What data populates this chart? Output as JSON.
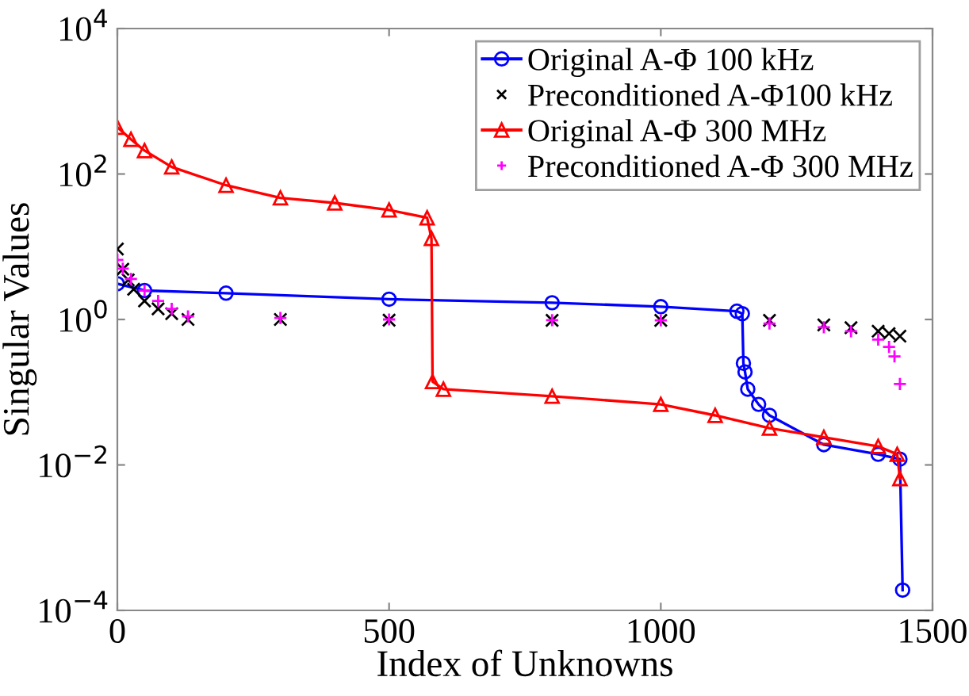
{
  "chart_data": {
    "type": "line",
    "xlabel": "Index of Unknowns",
    "ylabel": "Singular Values",
    "log": "y",
    "xlim": [
      0,
      1500
    ],
    "xticks": [
      0,
      500,
      1000,
      1500
    ],
    "ylim": [
      0.0001,
      10000
    ],
    "yticks": [
      {
        "value": 0.0001,
        "label": "10$^{−4}$"
      },
      {
        "value": 0.01,
        "label": "10$^{−2}$"
      },
      {
        "value": 1,
        "label": "10$^{0}$"
      },
      {
        "value": 100,
        "label": "10$^{2}$"
      },
      {
        "value": 10000,
        "label": "10$^{4}$"
      }
    ],
    "grid": false,
    "legend": "top right",
    "series": [
      {
        "name": "Original A-Φ 100 kHz",
        "marker": "circle",
        "line_style": "solid",
        "color": "#0000ff",
        "x": [
          0,
          50,
          200,
          500,
          800,
          1000,
          1140,
          1150,
          1152,
          1155,
          1160,
          1180,
          1200,
          1300,
          1400,
          1440,
          1445
        ],
        "values": [
          3.1,
          2.5,
          2.3,
          1.9,
          1.7,
          1.5,
          1.3,
          1.2,
          0.25,
          0.19,
          0.11,
          0.068,
          0.048,
          0.019,
          0.014,
          0.012,
          0.00019
        ]
      },
      {
        "name": "Preconditioned A-Φ100 kHz",
        "type": "scatter",
        "marker": "cross",
        "color": "#000000",
        "x": [
          0,
          10,
          20,
          30,
          50,
          75,
          100,
          130,
          300,
          500,
          800,
          1000,
          1200,
          1300,
          1350,
          1400,
          1420,
          1440
        ],
        "values": [
          9.3,
          4.9,
          3.5,
          2.6,
          1.8,
          1.4,
          1.2,
          1.0,
          1.0,
          0.98,
          0.97,
          0.97,
          0.97,
          0.84,
          0.77,
          0.69,
          0.64,
          0.59
        ]
      },
      {
        "name": "Original A-Φ 300 MHz",
        "marker": "triangle",
        "line_style": "solid",
        "color": "#ff0000",
        "x": [
          0,
          25,
          50,
          100,
          200,
          300,
          400,
          500,
          570,
          578,
          580,
          600,
          800,
          1000,
          1100,
          1200,
          1300,
          1400,
          1435,
          1440
        ],
        "values": [
          440,
          300,
          210,
          125,
          70,
          47,
          40,
          32,
          25,
          13,
          0.14,
          0.11,
          0.088,
          0.068,
          0.048,
          0.032,
          0.024,
          0.018,
          0.014,
          0.0065
        ]
      },
      {
        "name": "Preconditioned A-Φ 300 MHz",
        "type": "scatter",
        "marker": "plus",
        "color": "#ff00ff",
        "x": [
          0,
          10,
          25,
          50,
          75,
          100,
          130,
          300,
          500,
          800,
          1000,
          1200,
          1300,
          1350,
          1400,
          1420,
          1430,
          1440
        ],
        "values": [
          6.6,
          5.0,
          3.6,
          2.5,
          1.8,
          1.4,
          1.1,
          1.05,
          1.0,
          0.98,
          0.97,
          0.88,
          0.78,
          0.69,
          0.53,
          0.42,
          0.31,
          0.13
        ]
      }
    ]
  }
}
